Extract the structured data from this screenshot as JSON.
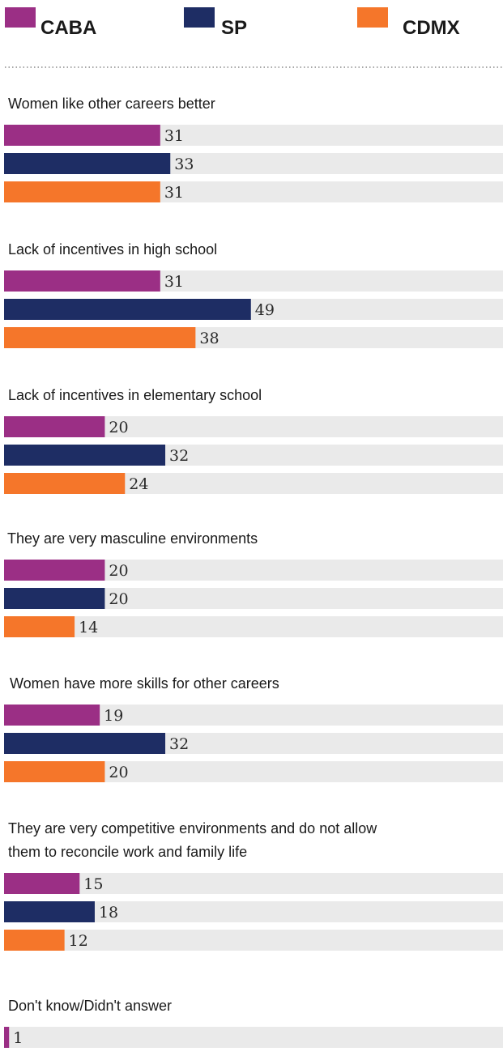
{
  "chart_data": {
    "type": "bar",
    "orientation": "horizontal",
    "xlim": [
      0,
      100
    ],
    "legend_position": "top",
    "series": [
      {
        "name": "CABA",
        "color": "#9b2f85"
      },
      {
        "name": "SP",
        "color": "#1e2d64"
      },
      {
        "name": "CDMX",
        "color": "#f5762a"
      }
    ],
    "track_color": "#eaeaea",
    "groups": [
      {
        "label_lines": [
          "Women like other careers better"
        ],
        "values": [
          31,
          33,
          31
        ]
      },
      {
        "label_lines": [
          "Lack of incentives in high school"
        ],
        "values": [
          31,
          49,
          38
        ]
      },
      {
        "label_lines": [
          "Lack of incentives in elementary school"
        ],
        "values": [
          20,
          32,
          24
        ]
      },
      {
        "label_lines": [
          "They are very masculine environments"
        ],
        "values": [
          20,
          20,
          14
        ]
      },
      {
        "label_lines": [
          "Women have more skills for other careers"
        ],
        "values": [
          19,
          32,
          20
        ]
      },
      {
        "label_lines": [
          "They are very competitive environments and do not allow",
          "them to reconcile work and family life"
        ],
        "values": [
          15,
          18,
          12
        ]
      },
      {
        "label_lines": [
          "Don't know/Didn't answer"
        ],
        "values": [
          1
        ]
      }
    ]
  }
}
